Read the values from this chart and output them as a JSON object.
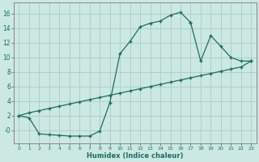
{
  "background_color": "#cce8e2",
  "grid_color": "#aaccC5",
  "line_color": "#1a6e62",
  "xlabel": "Humidex (Indice chaleur)",
  "ylim": [
    -1.8,
    17.5
  ],
  "xlim": [
    -0.5,
    23.5
  ],
  "ytick_vals": [
    0,
    2,
    4,
    6,
    8,
    10,
    12,
    14,
    16
  ],
  "ytick_labels": [
    "-0",
    "2",
    "4",
    "6",
    "8",
    "10",
    "12",
    "14",
    "16"
  ],
  "xtick_vals": [
    0,
    1,
    2,
    3,
    4,
    5,
    6,
    7,
    8,
    9,
    10,
    11,
    12,
    13,
    14,
    15,
    16,
    17,
    18,
    19,
    20,
    21,
    22,
    23
  ],
  "curve1_x": [
    0,
    1,
    2,
    3,
    4,
    5,
    6,
    7,
    8,
    9,
    10,
    11,
    12,
    13,
    14,
    15,
    16,
    17
  ],
  "curve1_y": [
    2,
    1.7,
    -0.5,
    -0.6,
    -0.7,
    -0.8,
    -0.8,
    -0.8,
    -0.1,
    3.8,
    10.5,
    12.2,
    14.2,
    14.7,
    15.0,
    15.8,
    16.2,
    14.8
  ],
  "curve2_x": [
    0,
    1,
    2,
    3,
    4,
    5,
    6,
    7,
    8,
    9,
    10,
    11,
    12,
    13,
    14,
    15,
    16,
    17,
    18,
    19,
    20,
    21,
    22,
    23
  ],
  "curve2_y": [
    2,
    2.4,
    2.7,
    3.0,
    3.3,
    3.6,
    3.9,
    4.2,
    4.5,
    4.8,
    5.1,
    5.4,
    5.7,
    6.0,
    6.3,
    6.6,
    6.9,
    7.2,
    7.5,
    7.8,
    8.1,
    8.4,
    8.7,
    9.5
  ],
  "curve3_x": [
    17,
    18,
    19,
    20,
    21,
    22,
    23
  ],
  "curve3_y": [
    14.8,
    9.5,
    13.0,
    11.5,
    10.0,
    9.5,
    9.5
  ]
}
